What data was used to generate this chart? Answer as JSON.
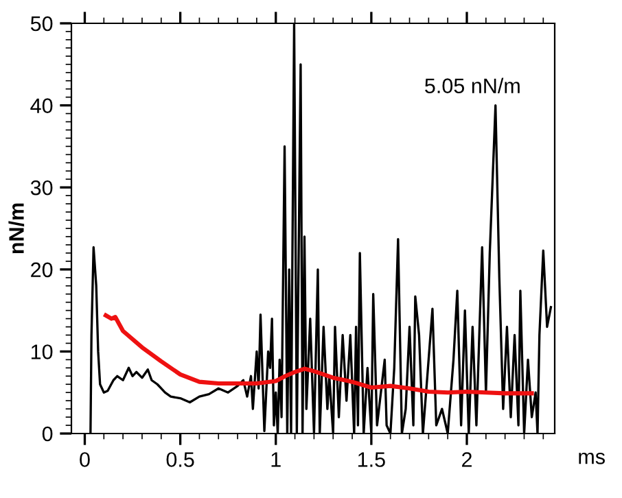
{
  "chart_data": {
    "type": "line",
    "xlabel": "ms",
    "ylabel": "nN/m",
    "annotations": [
      "5.05 nN/m"
    ],
    "xlim": [
      -0.07,
      2.46
    ],
    "xticks": [
      0,
      0.5,
      1,
      1.5,
      2
    ],
    "ylim": [
      0,
      50
    ],
    "yticks": [
      0,
      10,
      20,
      30,
      40,
      50
    ],
    "grid": false,
    "marker": "none",
    "line_style": "solid",
    "series": [
      {
        "color": "#000000",
        "x": [
          0.03,
          0.035,
          0.046,
          0.06,
          0.07,
          0.08,
          0.1,
          0.12,
          0.15,
          0.17,
          0.2,
          0.23,
          0.25,
          0.27,
          0.3,
          0.33,
          0.35,
          0.38,
          0.4,
          0.42,
          0.45,
          0.5,
          0.55,
          0.6,
          0.65,
          0.7,
          0.75,
          0.8,
          0.83,
          0.85,
          0.87,
          0.88,
          0.9,
          0.91,
          0.92,
          0.94,
          0.96,
          0.97,
          0.98,
          0.99,
          1.0,
          1.01,
          1.02,
          1.03,
          1.046,
          1.06,
          1.07,
          1.08,
          1.096,
          1.11,
          1.13,
          1.14,
          1.15,
          1.16,
          1.18,
          1.2,
          1.22,
          1.23,
          1.25,
          1.27,
          1.28,
          1.3,
          1.31,
          1.33,
          1.35,
          1.37,
          1.39,
          1.41,
          1.42,
          1.43,
          1.44,
          1.46,
          1.48,
          1.5,
          1.51,
          1.53,
          1.55,
          1.57,
          1.58,
          1.6,
          1.62,
          1.64,
          1.66,
          1.68,
          1.7,
          1.72,
          1.73,
          1.75,
          1.77,
          1.79,
          1.82,
          1.84,
          1.87,
          1.9,
          1.93,
          1.95,
          1.97,
          1.99,
          2.01,
          2.03,
          2.05,
          2.08,
          2.1,
          2.12,
          2.15,
          2.17,
          2.19,
          2.21,
          2.23,
          2.25,
          2.27,
          2.28,
          2.3,
          2.32,
          2.34,
          2.36,
          2.37,
          2.38,
          2.4,
          2.42,
          2.44
        ],
        "values": [
          0,
          12,
          22.7,
          18,
          10,
          6,
          5,
          5.2,
          6.5,
          7,
          6.5,
          8,
          7,
          7.5,
          6.8,
          7.8,
          6.5,
          6,
          5.5,
          5,
          4.5,
          4.3,
          3.8,
          4.5,
          4.8,
          5.5,
          5,
          5.8,
          6.5,
          4.5,
          7,
          3,
          10,
          5.5,
          14.5,
          0.3,
          10,
          8,
          14,
          1,
          5,
          0,
          9,
          2,
          35,
          0,
          20,
          0,
          50,
          0,
          45,
          0,
          24,
          3,
          14,
          0,
          20,
          0,
          13,
          3,
          7,
          0,
          13,
          2,
          12,
          4,
          12,
          0,
          13,
          1,
          22,
          0,
          8,
          0,
          17,
          1,
          5,
          9,
          1,
          0,
          8,
          23.7,
          0,
          3,
          13,
          1,
          16.7,
          12,
          0,
          6,
          15.2,
          1,
          3,
          0,
          9,
          17.4,
          1,
          15,
          0,
          13,
          1,
          22.7,
          5,
          22,
          40,
          19,
          3,
          13,
          2,
          12,
          1,
          17.4,
          0,
          9,
          2,
          5,
          0,
          12,
          22.3,
          13,
          15.4
        ]
      },
      {
        "color": "#ee1111",
        "x": [
          0.11,
          0.14,
          0.16,
          0.2,
          0.3,
          0.4,
          0.5,
          0.6,
          0.7,
          0.8,
          0.9,
          1.0,
          1.05,
          1.1,
          1.15,
          1.2,
          1.3,
          1.4,
          1.5,
          1.6,
          1.7,
          1.8,
          1.9,
          2.0,
          2.1,
          2.2,
          2.34
        ],
        "values": [
          14.4,
          14,
          14.2,
          12.5,
          10.5,
          8.8,
          7.2,
          6.3,
          6.1,
          6.1,
          6.1,
          6.4,
          7,
          7.5,
          7.9,
          7.6,
          6.8,
          6.3,
          5.6,
          5.8,
          5.5,
          5.1,
          5.0,
          5.1,
          5.0,
          4.9,
          4.9
        ]
      }
    ]
  }
}
